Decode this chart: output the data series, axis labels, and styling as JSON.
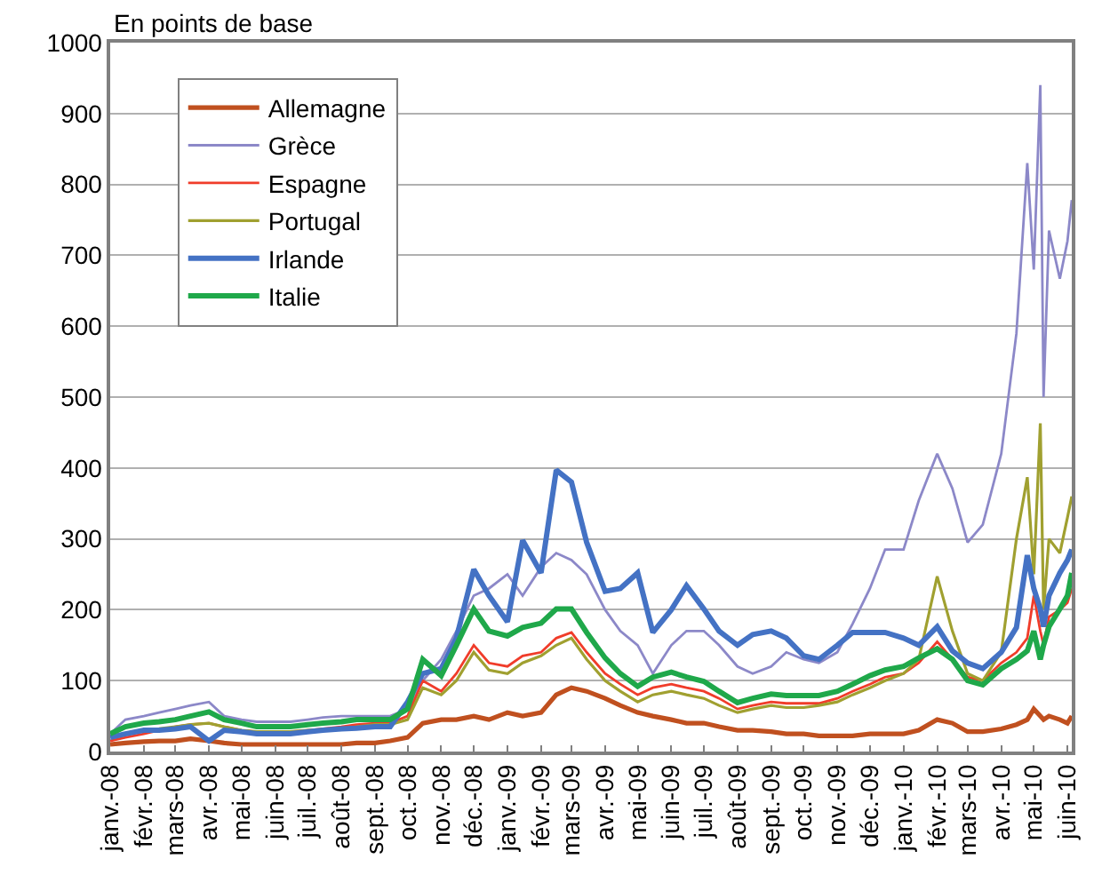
{
  "chart_data": {
    "type": "line",
    "ylabel": "En points de base",
    "x": [
      "2008-01-01",
      "2008-01-15",
      "2008-02-01",
      "2008-02-15",
      "2008-03-01",
      "2008-03-15",
      "2008-04-01",
      "2008-04-15",
      "2008-05-01",
      "2008-05-15",
      "2008-06-01",
      "2008-06-15",
      "2008-07-01",
      "2008-07-15",
      "2008-08-01",
      "2008-08-15",
      "2008-09-01",
      "2008-09-15",
      "2008-10-01",
      "2008-10-15",
      "2008-11-01",
      "2008-11-15",
      "2008-12-01",
      "2008-12-15",
      "2009-01-01",
      "2009-01-15",
      "2009-02-01",
      "2009-02-15",
      "2009-03-01",
      "2009-03-15",
      "2009-04-01",
      "2009-04-15",
      "2009-05-01",
      "2009-05-15",
      "2009-06-01",
      "2009-06-15",
      "2009-07-01",
      "2009-07-15",
      "2009-08-01",
      "2009-08-15",
      "2009-09-01",
      "2009-09-15",
      "2009-10-01",
      "2009-10-15",
      "2009-11-01",
      "2009-11-15",
      "2009-12-01",
      "2009-12-15",
      "2010-01-01",
      "2010-01-15",
      "2010-02-01",
      "2010-02-15",
      "2010-03-01",
      "2010-03-15",
      "2010-04-01",
      "2010-04-15",
      "2010-04-25",
      "2010-05-01",
      "2010-05-07",
      "2010-05-10",
      "2010-05-15",
      "2010-05-25",
      "2010-06-01",
      "2010-06-05"
    ],
    "series": [
      {
        "name": "Allemagne",
        "color": "#c0501f",
        "values": [
          10,
          12,
          14,
          15,
          15,
          18,
          15,
          12,
          10,
          10,
          10,
          10,
          10,
          10,
          10,
          12,
          12,
          15,
          20,
          40,
          45,
          45,
          50,
          45,
          55,
          50,
          55,
          80,
          90,
          85,
          75,
          65,
          55,
          50,
          45,
          40,
          40,
          35,
          30,
          30,
          28,
          25,
          25,
          22,
          22,
          22,
          25,
          25,
          25,
          30,
          45,
          40,
          28,
          28,
          32,
          38,
          45,
          60,
          50,
          45,
          50,
          45,
          40,
          50
        ]
      },
      {
        "name": "Grèce",
        "color": "#8c88c8",
        "values": [
          25,
          45,
          50,
          55,
          60,
          65,
          70,
          50,
          45,
          42,
          42,
          42,
          45,
          48,
          50,
          50,
          50,
          50,
          60,
          100,
          130,
          170,
          220,
          230,
          250,
          220,
          260,
          280,
          270,
          250,
          200,
          170,
          150,
          110,
          150,
          170,
          170,
          150,
          120,
          110,
          120,
          140,
          130,
          125,
          140,
          180,
          230,
          285,
          285,
          354,
          420,
          371,
          295,
          320,
          420,
          590,
          830,
          680,
          940,
          500,
          735,
          667,
          720,
          778
        ]
      },
      {
        "name": "Espagne",
        "color": "#f03c2a",
        "values": [
          15,
          20,
          25,
          30,
          35,
          38,
          40,
          35,
          30,
          28,
          28,
          28,
          30,
          32,
          35,
          38,
          40,
          40,
          50,
          100,
          85,
          110,
          150,
          125,
          120,
          135,
          140,
          160,
          168,
          140,
          110,
          95,
          80,
          90,
          95,
          90,
          85,
          75,
          60,
          65,
          70,
          68,
          68,
          68,
          75,
          85,
          95,
          105,
          110,
          125,
          155,
          130,
          105,
          100,
          125,
          140,
          160,
          220,
          170,
          150,
          190,
          200,
          210,
          230
        ]
      },
      {
        "name": "Portugal",
        "color": "#a0a030",
        "values": [
          null,
          null,
          30,
          32,
          35,
          38,
          40,
          35,
          30,
          28,
          28,
          28,
          30,
          30,
          32,
          35,
          38,
          38,
          45,
          90,
          80,
          100,
          140,
          115,
          110,
          125,
          135,
          150,
          160,
          130,
          100,
          85,
          70,
          80,
          85,
          80,
          75,
          65,
          55,
          60,
          65,
          62,
          62,
          65,
          70,
          80,
          90,
          100,
          110,
          130,
          247,
          170,
          110,
          100,
          140,
          300,
          387,
          250,
          463,
          200,
          300,
          280,
          330,
          360
        ]
      },
      {
        "name": "Irlande",
        "color": "#4472c4",
        "values": [
          20,
          25,
          30,
          30,
          32,
          35,
          15,
          30,
          28,
          25,
          25,
          25,
          28,
          30,
          32,
          33,
          35,
          35,
          70,
          110,
          117,
          160,
          257,
          220,
          183,
          298,
          252,
          397,
          380,
          295,
          226,
          230,
          252,
          168,
          200,
          234,
          201,
          170,
          150,
          165,
          170,
          160,
          135,
          130,
          150,
          168,
          168,
          168,
          160,
          150,
          176,
          142,
          125,
          117,
          140,
          175,
          277,
          230,
          201,
          176,
          220,
          252,
          270,
          285
        ]
      },
      {
        "name": "Italie",
        "color": "#1fa84a",
        "values": [
          25,
          35,
          40,
          42,
          45,
          50,
          56,
          45,
          40,
          35,
          35,
          35,
          38,
          40,
          42,
          45,
          45,
          45,
          60,
          130,
          107,
          150,
          201,
          170,
          163,
          175,
          181,
          201,
          201,
          168,
          132,
          110,
          92,
          105,
          112,
          105,
          99,
          85,
          69,
          75,
          81,
          79,
          79,
          79,
          85,
          95,
          107,
          115,
          120,
          132,
          145,
          130,
          100,
          94,
          117,
          130,
          142,
          170,
          130,
          150,
          176,
          201,
          220,
          252
        ]
      }
    ],
    "xlim": [
      "2008-01-01",
      "2010-06-05"
    ],
    "xticks": [
      {
        "value": "2008-01-01",
        "label": "janv.-08"
      },
      {
        "value": "2008-02-01",
        "label": "févr.-08"
      },
      {
        "value": "2008-03-01",
        "label": "mars-08"
      },
      {
        "value": "2008-04-01",
        "label": "avr.-08"
      },
      {
        "value": "2008-05-01",
        "label": "mai-08"
      },
      {
        "value": "2008-06-01",
        "label": "juin-08"
      },
      {
        "value": "2008-07-01",
        "label": "juil.-08"
      },
      {
        "value": "2008-08-01",
        "label": "août-08"
      },
      {
        "value": "2008-09-01",
        "label": "sept.-08"
      },
      {
        "value": "2008-10-01",
        "label": "oct.-08"
      },
      {
        "value": "2008-11-01",
        "label": "nov.-08"
      },
      {
        "value": "2008-12-01",
        "label": "déc.-08"
      },
      {
        "value": "2009-01-01",
        "label": "janv.-09"
      },
      {
        "value": "2009-02-01",
        "label": "févr.-09"
      },
      {
        "value": "2009-03-01",
        "label": "mars-09"
      },
      {
        "value": "2009-04-01",
        "label": "avr.-09"
      },
      {
        "value": "2009-05-01",
        "label": "mai-09"
      },
      {
        "value": "2009-06-01",
        "label": "juin-09"
      },
      {
        "value": "2009-07-01",
        "label": "juil.-09"
      },
      {
        "value": "2009-08-01",
        "label": "août-09"
      },
      {
        "value": "2009-09-01",
        "label": "sept.-09"
      },
      {
        "value": "2009-10-01",
        "label": "oct.-09"
      },
      {
        "value": "2009-11-01",
        "label": "nov.-09"
      },
      {
        "value": "2009-12-01",
        "label": "déc.-09"
      },
      {
        "value": "2010-01-01",
        "label": "janv.-10"
      },
      {
        "value": "2010-02-01",
        "label": "févr.-10"
      },
      {
        "value": "2010-03-01",
        "label": "mars-10"
      },
      {
        "value": "2010-04-01",
        "label": "avr.-10"
      },
      {
        "value": "2010-05-01",
        "label": "mai-10"
      },
      {
        "value": "2010-06-01",
        "label": "juin-10"
      }
    ],
    "ylim": [
      0,
      1000
    ],
    "yticks": [
      0,
      100,
      200,
      300,
      400,
      500,
      600,
      700,
      800,
      900,
      1000
    ],
    "grid": "y",
    "legend": "top left",
    "marker": "none",
    "line_style": "solid"
  }
}
